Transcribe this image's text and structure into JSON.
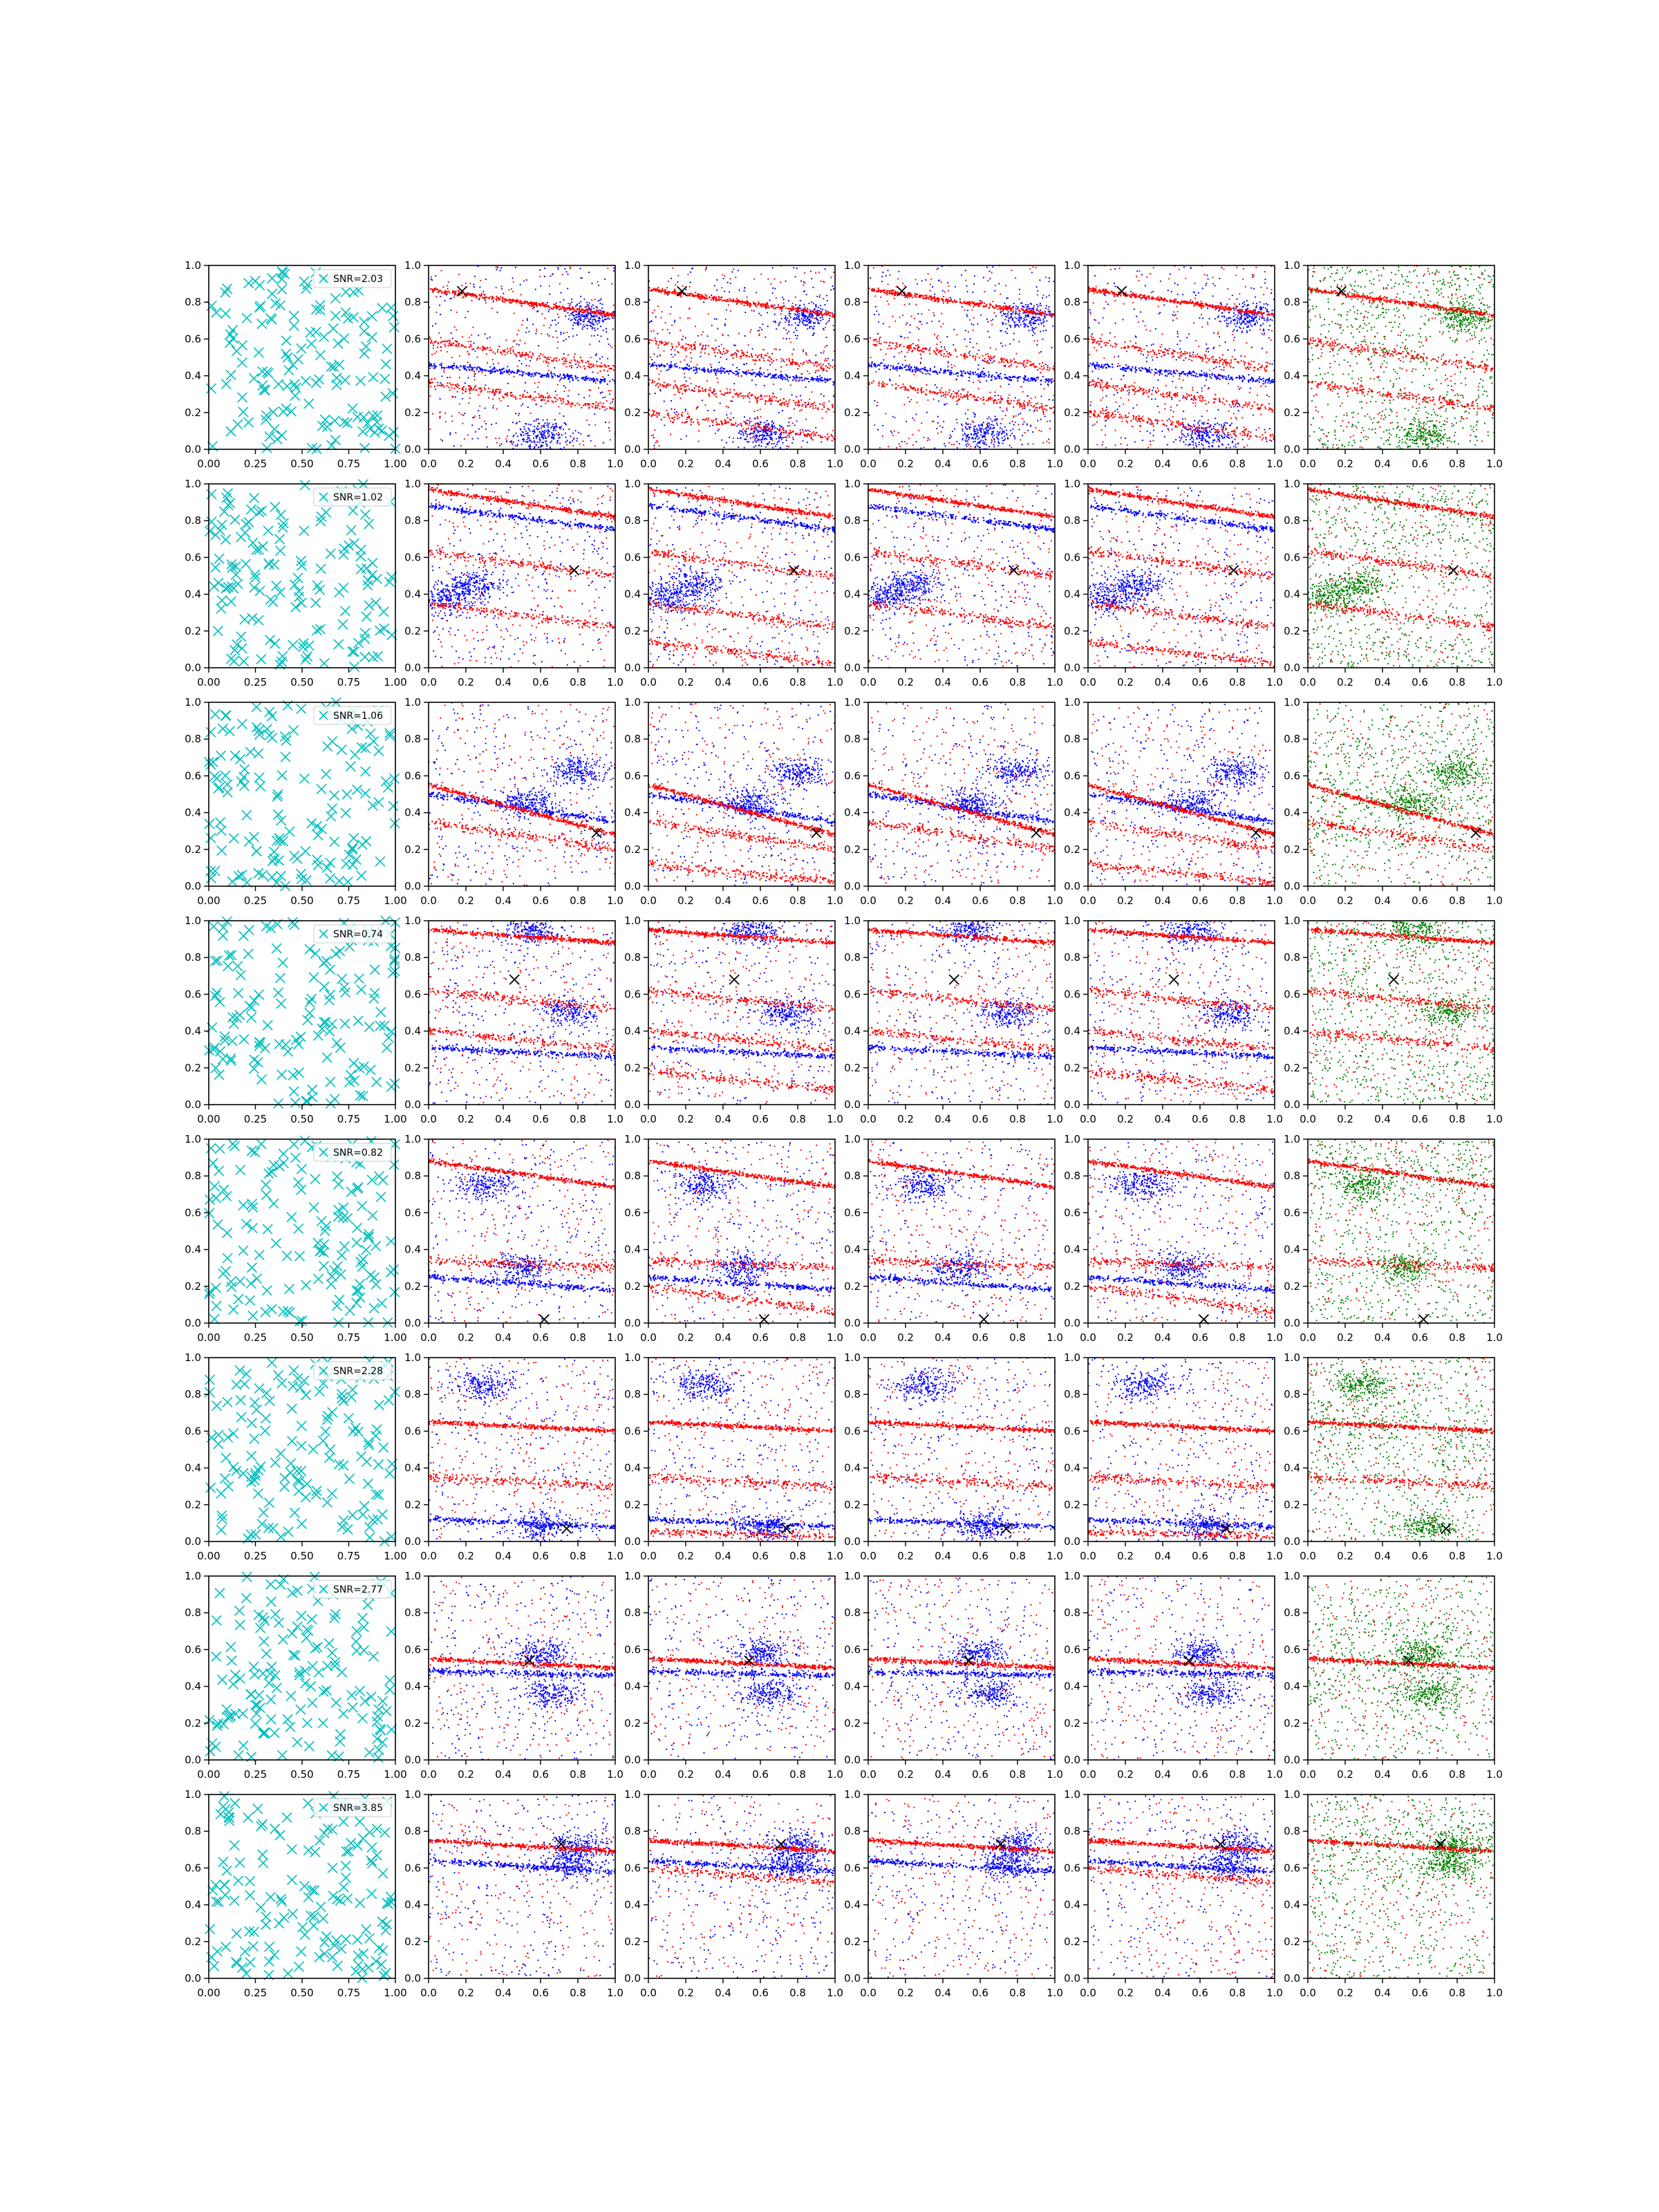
{
  "chart_data": {
    "type": "scatter",
    "layout": {
      "rows": 8,
      "cols": 6
    },
    "colors": {
      "cyan_marker": "#00bfbf",
      "red": "#ff0000",
      "blue": "#0000ff",
      "green": "#008000",
      "target": "#000000"
    },
    "panel_columns": [
      {
        "col": 0,
        "kind": "cross-scatter",
        "color": "#00bfbf",
        "xlim": [
          0,
          1
        ],
        "ylim": [
          0,
          1
        ],
        "xticks": [
          "0.00",
          "0.25",
          "0.50",
          "0.75",
          "1.00"
        ],
        "yticks": [
          "0.0",
          "0.2",
          "0.4",
          "0.6",
          "0.8",
          "1.0"
        ]
      },
      {
        "col": 1,
        "kind": "red-blue",
        "xlim": [
          0,
          1
        ],
        "ylim": [
          0,
          1
        ],
        "xticks": [
          "0.0",
          "0.2",
          "0.4",
          "0.6",
          "0.8",
          "1.0"
        ],
        "yticks": [
          "0.0",
          "0.2",
          "0.4",
          "0.6",
          "0.8",
          "1.0"
        ]
      },
      {
        "col": 2,
        "kind": "red-blue",
        "xlim": [
          0,
          1
        ],
        "ylim": [
          0,
          1
        ],
        "xticks": [
          "0.0",
          "0.2",
          "0.4",
          "0.6",
          "0.8",
          "1.0"
        ],
        "yticks": [
          "0.0",
          "0.2",
          "0.4",
          "0.6",
          "0.8",
          "1.0"
        ]
      },
      {
        "col": 3,
        "kind": "red-blue",
        "xlim": [
          0,
          1
        ],
        "ylim": [
          0,
          1
        ],
        "xticks": [
          "0.0",
          "0.2",
          "0.4",
          "0.6",
          "0.8",
          "1.0"
        ],
        "yticks": [
          "0.0",
          "0.2",
          "0.4",
          "0.6",
          "0.8",
          "1.0"
        ]
      },
      {
        "col": 4,
        "kind": "red-blue",
        "xlim": [
          0,
          1
        ],
        "ylim": [
          0,
          1
        ],
        "xticks": [
          "0.0",
          "0.2",
          "0.4",
          "0.6",
          "0.8",
          "1.0"
        ],
        "yticks": [
          "0.0",
          "0.2",
          "0.4",
          "0.6",
          "0.8",
          "1.0"
        ]
      },
      {
        "col": 5,
        "kind": "red-green",
        "xlim": [
          0,
          1
        ],
        "ylim": [
          0,
          1
        ],
        "xticks": [
          "0.0",
          "0.2",
          "0.4",
          "0.6",
          "0.8",
          "1.0"
        ],
        "yticks": [
          "0.0",
          "0.2",
          "0.4",
          "0.6",
          "0.8",
          "1.0"
        ]
      }
    ],
    "rows": [
      {
        "snr_label": "SNR=2.03",
        "target": [
          0.18,
          0.86
        ],
        "red_lines": [
          [
            0.87,
            0.73
          ],
          [
            0.59,
            0.44
          ],
          [
            0.36,
            0.22
          ],
          [
            0.2,
            0.06
          ]
        ],
        "blue_line": [
          0.46,
          0.37
        ],
        "blue_blobs": [
          [
            0.62,
            0.08
          ],
          [
            0.85,
            0.72
          ]
        ]
      },
      {
        "snr_label": "SNR=1.02",
        "target": [
          0.78,
          0.53
        ],
        "red_lines": [
          [
            0.97,
            0.82
          ],
          [
            0.63,
            0.5
          ],
          [
            0.35,
            0.22
          ],
          [
            0.14,
            0.02
          ]
        ],
        "blue_line": [
          0.88,
          0.75
        ],
        "blue_blobs": [
          [
            0.1,
            0.38
          ],
          [
            0.25,
            0.45
          ]
        ]
      },
      {
        "snr_label": "SNR=1.06",
        "target": [
          0.9,
          0.29
        ],
        "red_lines": [
          [
            0.55,
            0.28
          ],
          [
            0.35,
            0.2
          ],
          [
            0.12,
            0.02
          ]
        ],
        "blue_line": [
          0.5,
          0.35
        ],
        "blue_blobs": [
          [
            0.55,
            0.45
          ],
          [
            0.8,
            0.62
          ]
        ]
      },
      {
        "snr_label": "SNR=0.74",
        "target": [
          0.46,
          0.68
        ],
        "red_lines": [
          [
            0.95,
            0.88
          ],
          [
            0.62,
            0.52
          ],
          [
            0.4,
            0.3
          ],
          [
            0.18,
            0.08
          ]
        ],
        "blue_line": [
          0.31,
          0.26
        ],
        "blue_blobs": [
          [
            0.55,
            0.95
          ],
          [
            0.75,
            0.5
          ]
        ]
      },
      {
        "snr_label": "SNR=0.82",
        "target": [
          0.62,
          0.02
        ],
        "red_lines": [
          [
            0.88,
            0.74
          ],
          [
            0.34,
            0.3
          ],
          [
            0.2,
            0.06
          ]
        ],
        "blue_line": [
          0.25,
          0.18
        ],
        "blue_blobs": [
          [
            0.5,
            0.3
          ],
          [
            0.3,
            0.75
          ]
        ]
      },
      {
        "snr_label": "SNR=2.28",
        "target": [
          0.74,
          0.07
        ],
        "red_lines": [
          [
            0.65,
            0.6
          ],
          [
            0.35,
            0.3
          ],
          [
            0.05,
            0.03
          ]
        ],
        "blue_line": [
          0.12,
          0.08
        ],
        "blue_blobs": [
          [
            0.62,
            0.08
          ],
          [
            0.3,
            0.85
          ]
        ]
      },
      {
        "snr_label": "SNR=2.77",
        "target": [
          0.54,
          0.54
        ],
        "red_lines": [
          [
            0.55,
            0.5
          ]
        ],
        "blue_line": [
          0.48,
          0.46
        ],
        "blue_blobs": [
          [
            0.65,
            0.36
          ],
          [
            0.6,
            0.58
          ]
        ]
      },
      {
        "snr_label": "SNR=3.85",
        "target": [
          0.71,
          0.73
        ],
        "red_lines": [
          [
            0.75,
            0.69
          ],
          [
            0.6,
            0.52
          ]
        ],
        "blue_line": [
          0.64,
          0.58
        ],
        "blue_blobs": [
          [
            0.8,
            0.72
          ],
          [
            0.75,
            0.62
          ]
        ]
      }
    ]
  }
}
